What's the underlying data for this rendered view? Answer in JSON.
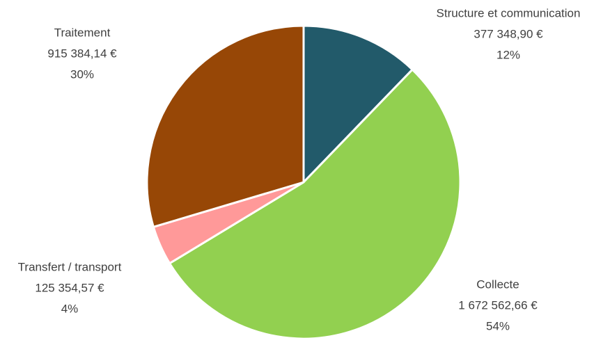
{
  "chart_data": {
    "type": "pie",
    "categories": [
      "Structure et communication",
      "Collecte",
      "Transfert / transport",
      "Traitement"
    ],
    "values": [
      377348.9,
      1672562.66,
      125354.57,
      915384.14
    ],
    "value_labels": [
      "377 348,90 €",
      "1 672 562,66 €",
      "125 354,57 €",
      "915 384,14 €"
    ],
    "percents": [
      12,
      54,
      4,
      30
    ],
    "percent_labels": [
      "12%",
      "54%",
      "4%",
      "30%"
    ],
    "colors": [
      "#225a6a",
      "#92d050",
      "#ff9999",
      "#974706"
    ]
  }
}
